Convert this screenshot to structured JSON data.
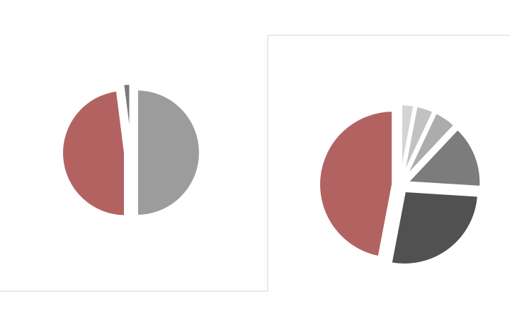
{
  "chart_data": [
    {
      "type": "pie",
      "values": [
        50,
        48,
        2
      ],
      "colors": [
        "#9c9c9c",
        "#b36262",
        "#7a7a7a"
      ]
    },
    {
      "type": "pie",
      "values": [
        3,
        4,
        5,
        14,
        27,
        47
      ],
      "colors": [
        "#d4d4d4",
        "#c2c2c2",
        "#acacac",
        "#7c7c7c",
        "#515151",
        "#b36262"
      ]
    }
  ]
}
